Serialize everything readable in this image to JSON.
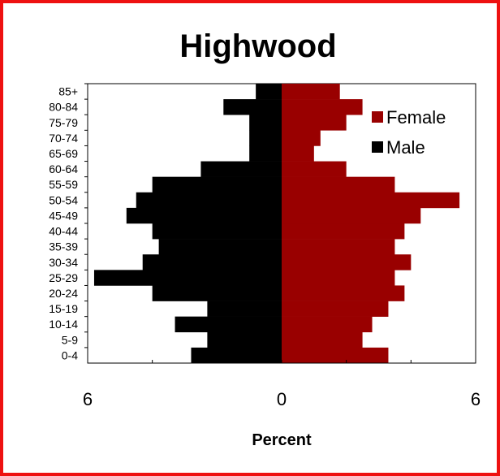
{
  "colors": {
    "frame": "#ee1111",
    "female": "#990000",
    "male": "#000000"
  },
  "chart_data": {
    "type": "bar",
    "orientation": "horizontal",
    "layout": "population-pyramid",
    "title": "Highwood",
    "xlabel": "Percent",
    "ylabel": "",
    "xlim": [
      -6,
      6
    ],
    "x_tick_labels": [
      "6",
      "0",
      "6"
    ],
    "grid": false,
    "legend_position": "top-right",
    "categories": [
      "0-4",
      "5-9",
      "10-14",
      "15-19",
      "20-24",
      "25-29",
      "30-34",
      "35-39",
      "40-44",
      "45-49",
      "50-54",
      "55-59",
      "60-64",
      "65-69",
      "70-74",
      "75-79",
      "80-84",
      "85+"
    ],
    "series": [
      {
        "name": "Female",
        "color": "#990000",
        "values": [
          3.3,
          2.5,
          2.8,
          3.3,
          3.8,
          3.5,
          4.0,
          3.5,
          3.8,
          4.3,
          5.5,
          3.5,
          2.0,
          1.0,
          1.2,
          2.0,
          2.5,
          1.8
        ]
      },
      {
        "name": "Male",
        "color": "#000000",
        "values": [
          2.8,
          2.3,
          3.3,
          2.3,
          4.0,
          5.8,
          4.3,
          3.8,
          4.0,
          4.8,
          4.5,
          4.0,
          2.5,
          1.0,
          1.0,
          1.0,
          1.8,
          0.8
        ]
      }
    ]
  }
}
